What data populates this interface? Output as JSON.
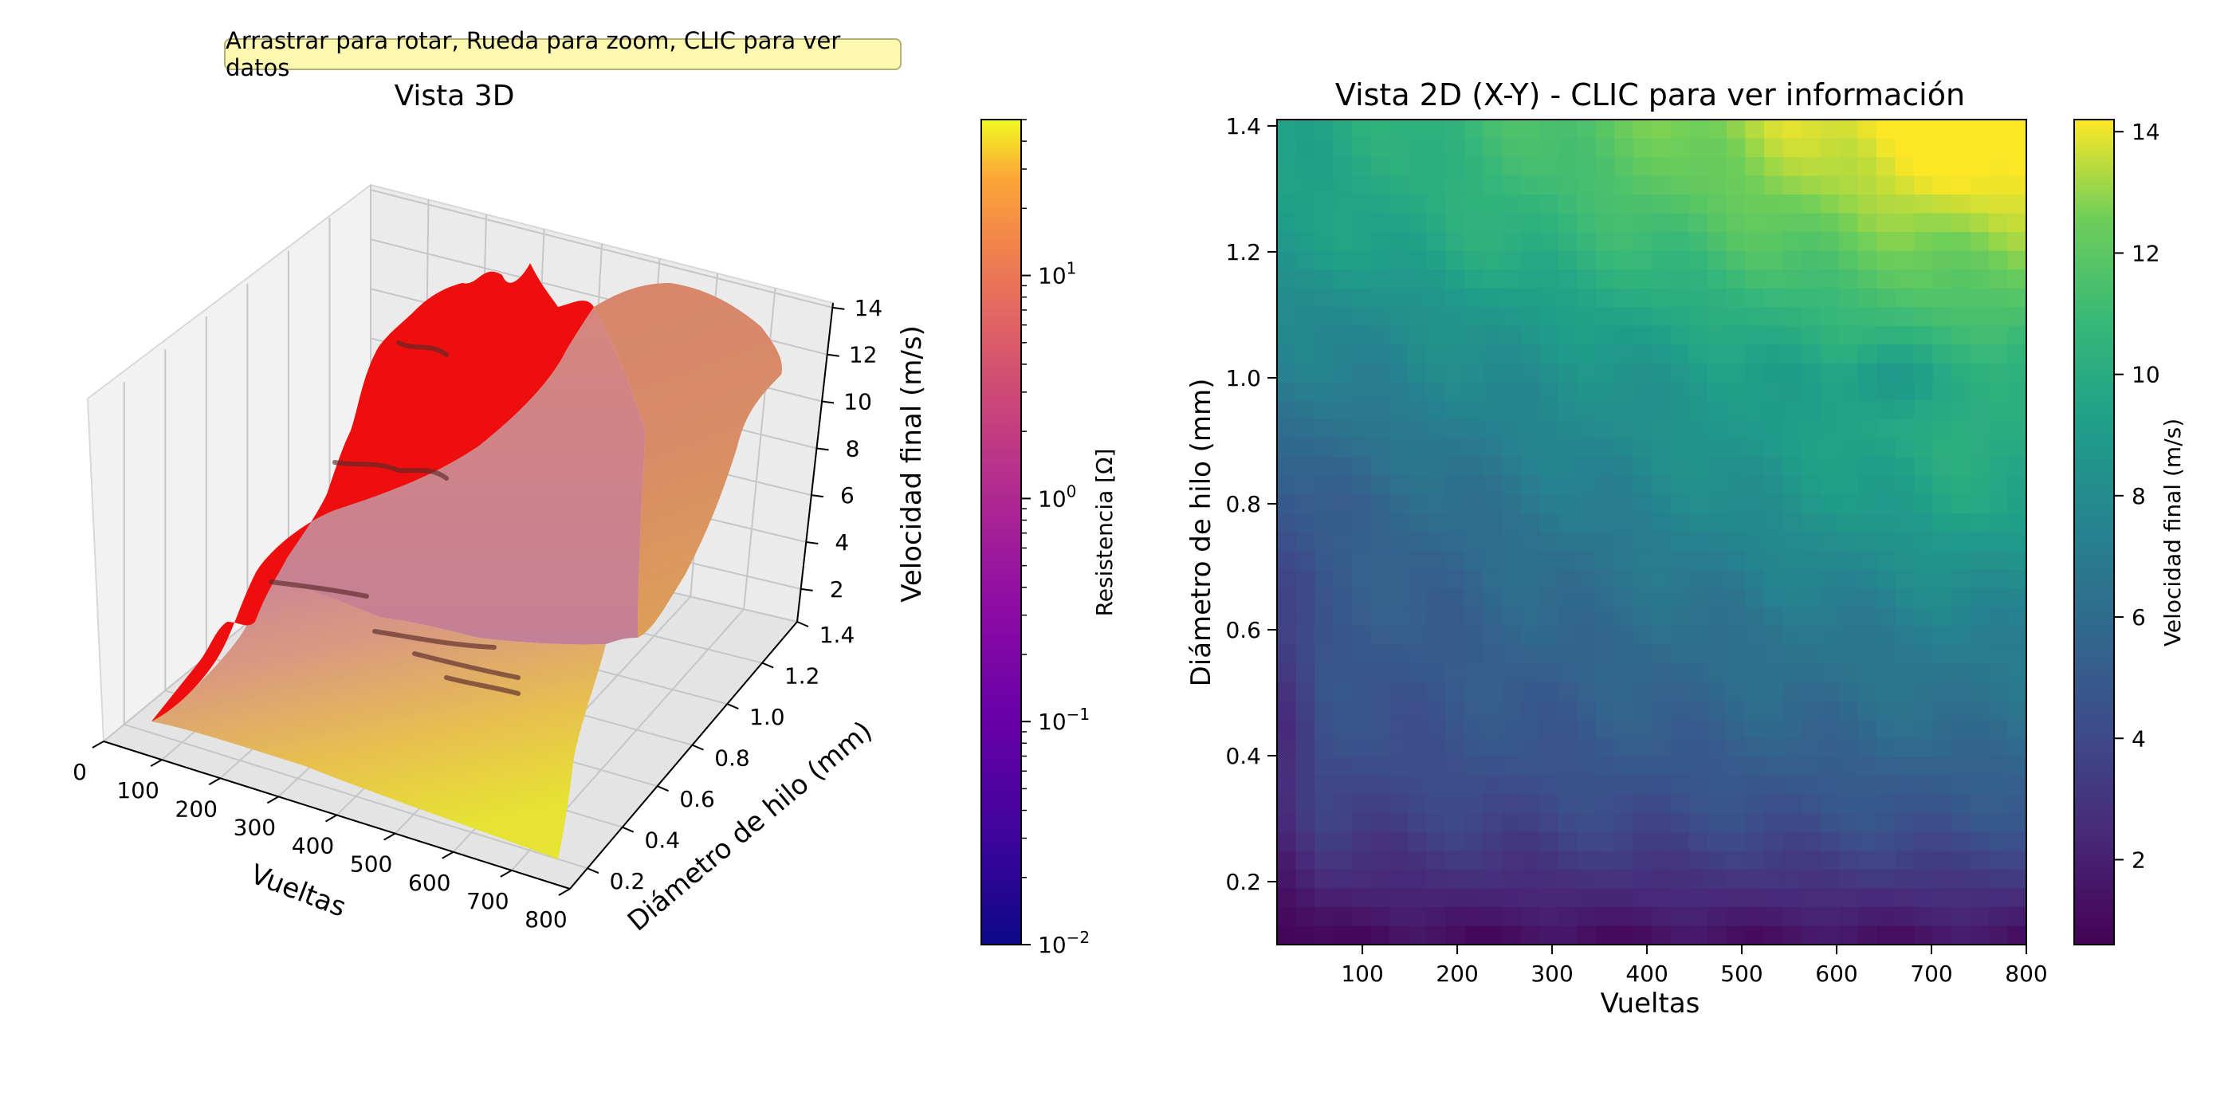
{
  "hint_label": "Arrastrar para rotar, Rueda para zoom, CLIC para ver datos",
  "chart_data": [
    {
      "type": "surface3d",
      "title": "Vista 3D",
      "xlabel": "Vueltas",
      "ylabel": "Diámetro de hilo (mm)",
      "zlabel": "Velocidad final (m/s)",
      "x_ticks": [
        "0",
        "100",
        "200",
        "300",
        "400",
        "500",
        "600",
        "700",
        "800"
      ],
      "y_ticks": [
        "0.2",
        "0.4",
        "0.6",
        "0.8",
        "1.0",
        "1.2",
        "1.4"
      ],
      "z_ticks": [
        "2",
        "4",
        "6",
        "8",
        "10",
        "12",
        "14"
      ],
      "xlim": [
        0,
        800
      ],
      "ylim": [
        0.1,
        1.4
      ],
      "zlim": [
        0.6,
        14.2
      ],
      "grid": true,
      "colorbar": {
        "label": "Resistencia [Ω]",
        "scale": "log",
        "range": [
          0.01,
          50
        ],
        "colormap": "plasma",
        "ticks": [
          {
            "value": 0.01,
            "base": "10",
            "exp": "−2"
          },
          {
            "value": 0.1,
            "base": "10",
            "exp": "−1"
          },
          {
            "value": 1,
            "base": "10",
            "exp": "0"
          },
          {
            "value": 10,
            "base": "10",
            "exp": "1"
          }
        ]
      },
      "highlight_color": "#ff0000"
    },
    {
      "type": "heatmap",
      "title": "Vista 2D (X-Y) - CLIC para ver información",
      "xlabel": "Vueltas",
      "ylabel": "Diámetro de hilo (mm)",
      "xlim": [
        10,
        800
      ],
      "ylim": [
        0.1,
        1.41
      ],
      "x_ticks": [
        100,
        200,
        300,
        400,
        500,
        600,
        700,
        800
      ],
      "y_ticks": [
        "0.2",
        "0.4",
        "0.6",
        "0.8",
        "1.0",
        "1.2",
        "1.4"
      ],
      "colormap": "viridis",
      "colorbar": {
        "label": "Velocidad final (m/s)",
        "range": [
          0.6,
          14.2
        ],
        "ticks": [
          2,
          4,
          6,
          8,
          10,
          12,
          14
        ]
      },
      "value_samples": {
        "diameters_mm": [
          0.1,
          0.2,
          0.3,
          0.4,
          0.5,
          0.6,
          0.7,
          0.8,
          0.9,
          1.0,
          1.1,
          1.2,
          1.3,
          1.4
        ],
        "velocity_at_200_vueltas": [
          1.0,
          2.6,
          3.8,
          4.5,
          4.9,
          5.3,
          5.7,
          6.2,
          7.0,
          7.8,
          8.6,
          9.8,
          10.4,
          10.8
        ],
        "velocity_at_600_vueltas": [
          1.2,
          3.0,
          4.5,
          5.4,
          6.2,
          6.8,
          7.8,
          8.8,
          9.4,
          9.5,
          10.8,
          12.0,
          13.2,
          14.0
        ]
      }
    }
  ]
}
